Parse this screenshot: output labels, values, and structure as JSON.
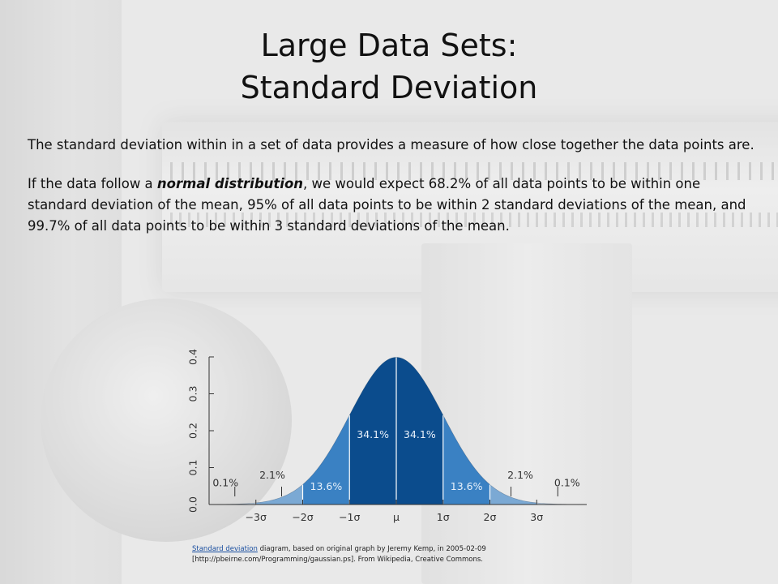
{
  "slide": {
    "title_line1": "Large Data Sets:",
    "title_line2": "Standard Deviation",
    "paragraph1": "The standard deviation within in a set of data provides a measure of how close together the data points are.",
    "paragraph2_pre": "If the data follow a ",
    "paragraph2_em": "normal distribution",
    "paragraph2_post": ", we would expect 68.2% of all data points to be within one standard deviation of the mean, 95% of all data points to be within 2 standard deviations of the mean, and 99.7% of all data points to be within 3 standard deviations of the mean.",
    "caption_link": "Standard deviation",
    "caption_text_1": " diagram, based on original graph by Jeremy Kemp, in 2005-02-09",
    "caption_text_2": "[http://pbeirne.com/Programming/gaussian.ps].  From Wikipedia, Creative Commons."
  },
  "chart_data": {
    "type": "area",
    "ylim": [
      0,
      0.4
    ],
    "xlim": [
      -4,
      4
    ],
    "y_ticks": [
      "0.0",
      "0.1",
      "0.2",
      "0.3",
      "0.4"
    ],
    "y_tick_values": [
      0,
      0.1,
      0.2,
      0.3,
      0.4
    ],
    "x_ticks": [
      "−3σ",
      "−2σ",
      "−1σ",
      "μ",
      "1σ",
      "2σ",
      "3σ"
    ],
    "x_tick_values": [
      -3,
      -2,
      -1,
      0,
      1,
      2,
      3
    ],
    "regions": [
      {
        "from": -4,
        "to": -3,
        "label": "0.1%",
        "color": "#c5d7ea"
      },
      {
        "from": -3,
        "to": -2,
        "label": "2.1%",
        "color": "#7ba9d4"
      },
      {
        "from": -2,
        "to": -1,
        "label": "13.6%",
        "color": "#3a81c3"
      },
      {
        "from": -1,
        "to": 0,
        "label": "34.1%",
        "color": "#0b4c8d"
      },
      {
        "from": 0,
        "to": 1,
        "label": "34.1%",
        "color": "#0b4c8d"
      },
      {
        "from": 1,
        "to": 2,
        "label": "13.6%",
        "color": "#3a81c3"
      },
      {
        "from": 2,
        "to": 3,
        "label": "2.1%",
        "color": "#7ba9d4"
      },
      {
        "from": 3,
        "to": 4,
        "label": "0.1%",
        "color": "#c5d7ea"
      }
    ]
  }
}
